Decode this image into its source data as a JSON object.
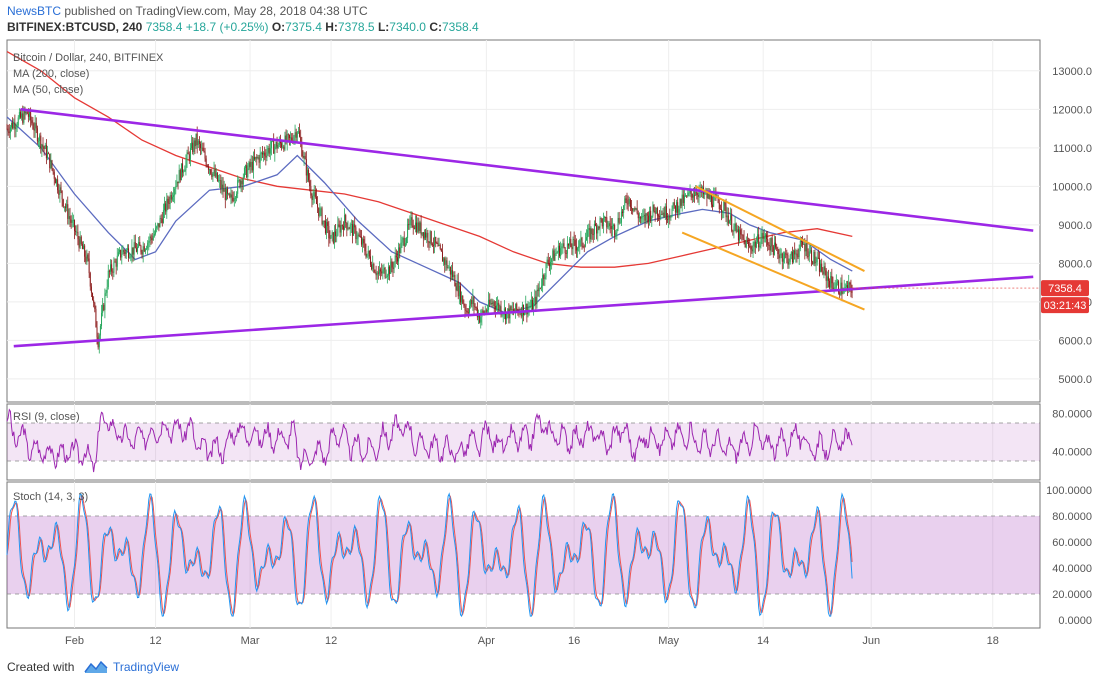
{
  "header": {
    "author": "NewsBTC",
    "published_text": "published on TradingView.com, May 28, 2018 04:38 UTC",
    "symbol": "BITFINEX:BTCUSD, 240",
    "last": "7358.4",
    "change": "+18.7 (+0.25%)",
    "o_label": "O:",
    "o_value": "7375.4",
    "h_label": "H:",
    "h_value": "7378.5",
    "l_label": "L:",
    "l_value": "7340.0",
    "c_label": "C:",
    "c_value": "7358.4"
  },
  "legend": {
    "title": "Bitcoin / Dollar, 240, BITFINEX",
    "ma200": "MA (200, close)",
    "ma50": "MA (50, close)"
  },
  "price_badge": "7358.4",
  "time_badge": "03:21:43",
  "rsi_title": "RSI (9, close)",
  "stoch_title": "Stoch (14, 3, 3)",
  "footer": {
    "created_with": "Created with",
    "brand": "TradingView"
  },
  "colors": {
    "trendline": "#9c27e6",
    "channel": "#f5a623",
    "ma200": "#e53935",
    "ma50": "#5c6bc0",
    "up": "#26a65b",
    "down": "#8b1a1a",
    "rsi": "#9c27b0",
    "stoch_k": "#2196f3",
    "stoch_d": "#ef5350",
    "badge": "#e53935"
  },
  "chart_data": {
    "type": "line",
    "title": "Bitcoin / Dollar, 240, BITFINEX",
    "price_axis": {
      "ticks": [
        "13000.0",
        "12000.0",
        "11000.0",
        "10000.0",
        "9000.0",
        "8000.0",
        "7000.0",
        "6000.0",
        "5000.0"
      ],
      "range": [
        4400,
        13800
      ]
    },
    "time_axis": {
      "ticks": [
        "Feb",
        "12",
        "Mar",
        "12",
        "Apr",
        "16",
        "May",
        "14",
        "Jun",
        "18"
      ],
      "range": [
        "2018-01-23",
        "2018-06-25"
      ]
    },
    "price_path": [
      [
        0,
        11500
      ],
      [
        3,
        11900
      ],
      [
        6,
        10800
      ],
      [
        9,
        9300
      ],
      [
        12,
        8000
      ],
      [
        13.5,
        6000
      ],
      [
        15,
        7700
      ],
      [
        17,
        8300
      ],
      [
        20,
        8400
      ],
      [
        22,
        8800
      ],
      [
        25,
        10100
      ],
      [
        28,
        11200
      ],
      [
        30,
        10500
      ],
      [
        33,
        9600
      ],
      [
        35,
        10300
      ],
      [
        37,
        10700
      ],
      [
        39,
        11000
      ],
      [
        42,
        11200
      ],
      [
        43,
        11500
      ],
      [
        45,
        9900
      ],
      [
        48,
        8600
      ],
      [
        50,
        9100
      ],
      [
        52,
        8700
      ],
      [
        55,
        7700
      ],
      [
        57,
        7900
      ],
      [
        60,
        9100
      ],
      [
        63,
        8600
      ],
      [
        66,
        7700
      ],
      [
        68,
        6800
      ],
      [
        69,
        7000
      ],
      [
        70,
        6600
      ],
      [
        72,
        7000
      ],
      [
        74,
        6700
      ],
      [
        76,
        6800
      ],
      [
        78,
        6900
      ],
      [
        80,
        8000
      ],
      [
        82,
        8400
      ],
      [
        85,
        8500
      ],
      [
        88,
        9100
      ],
      [
        90,
        8900
      ],
      [
        92,
        9700
      ],
      [
        94,
        9100
      ],
      [
        96,
        9400
      ],
      [
        98,
        9300
      ],
      [
        100,
        9600
      ],
      [
        102,
        9900
      ],
      [
        104,
        9700
      ],
      [
        106,
        9500
      ],
      [
        108,
        8800
      ],
      [
        110,
        8400
      ],
      [
        112,
        8700
      ],
      [
        114,
        8300
      ],
      [
        116,
        8100
      ],
      [
        118,
        8500
      ],
      [
        120,
        8000
      ],
      [
        122,
        7500
      ],
      [
        124,
        7300
      ],
      [
        125.2,
        7358
      ]
    ],
    "ma200_path": [
      [
        0,
        13500
      ],
      [
        5,
        13000
      ],
      [
        10,
        12300
      ],
      [
        15,
        11800
      ],
      [
        20,
        11200
      ],
      [
        25,
        10800
      ],
      [
        30,
        10500
      ],
      [
        35,
        10200
      ],
      [
        40,
        10000
      ],
      [
        45,
        9900
      ],
      [
        50,
        9800
      ],
      [
        55,
        9600
      ],
      [
        60,
        9300
      ],
      [
        65,
        9000
      ],
      [
        70,
        8700
      ],
      [
        75,
        8300
      ],
      [
        80,
        8000
      ],
      [
        85,
        7900
      ],
      [
        90,
        7900
      ],
      [
        95,
        8000
      ],
      [
        100,
        8200
      ],
      [
        105,
        8400
      ],
      [
        110,
        8600
      ],
      [
        115,
        8800
      ],
      [
        120,
        8900
      ],
      [
        125.2,
        8700
      ]
    ],
    "ma50_path": [
      [
        0,
        11800
      ],
      [
        5,
        11000
      ],
      [
        10,
        9800
      ],
      [
        15,
        8800
      ],
      [
        19,
        8100
      ],
      [
        22,
        8300
      ],
      [
        25,
        9100
      ],
      [
        30,
        9900
      ],
      [
        35,
        10000
      ],
      [
        40,
        10300
      ],
      [
        43,
        10800
      ],
      [
        47,
        10100
      ],
      [
        52,
        9100
      ],
      [
        57,
        8300
      ],
      [
        62,
        7900
      ],
      [
        67,
        7500
      ],
      [
        70,
        7000
      ],
      [
        74,
        6700
      ],
      [
        78,
        6900
      ],
      [
        82,
        7600
      ],
      [
        86,
        8300
      ],
      [
        90,
        8700
      ],
      [
        95,
        9100
      ],
      [
        100,
        9300
      ],
      [
        103,
        9400
      ],
      [
        107,
        9300
      ],
      [
        110,
        9000
      ],
      [
        113,
        8800
      ],
      [
        118,
        8600
      ],
      [
        122,
        8100
      ],
      [
        125.2,
        7800
      ]
    ],
    "trendlines": [
      {
        "name": "upper-triangle",
        "from": [
          2,
          12000
        ],
        "to": [
          152,
          8850
        ]
      },
      {
        "name": "lower-triangle",
        "from": [
          1,
          5850
        ],
        "to": [
          152,
          7650
        ]
      },
      {
        "name": "channel-upper",
        "from": [
          102,
          10000
        ],
        "to": [
          127,
          7800
        ]
      },
      {
        "name": "channel-lower",
        "from": [
          100,
          8800
        ],
        "to": [
          127,
          6800
        ]
      }
    ],
    "rsi": {
      "axis_ticks": [
        "80.0000",
        "40.0000"
      ],
      "range": [
        10,
        90
      ],
      "band": [
        30,
        70
      ]
    },
    "stoch": {
      "axis_ticks": [
        "100.0000",
        "80.0000",
        "60.0000",
        "40.0000",
        "20.0000",
        "0.0000"
      ],
      "range": [
        0,
        100
      ],
      "band": [
        20,
        80
      ]
    }
  }
}
